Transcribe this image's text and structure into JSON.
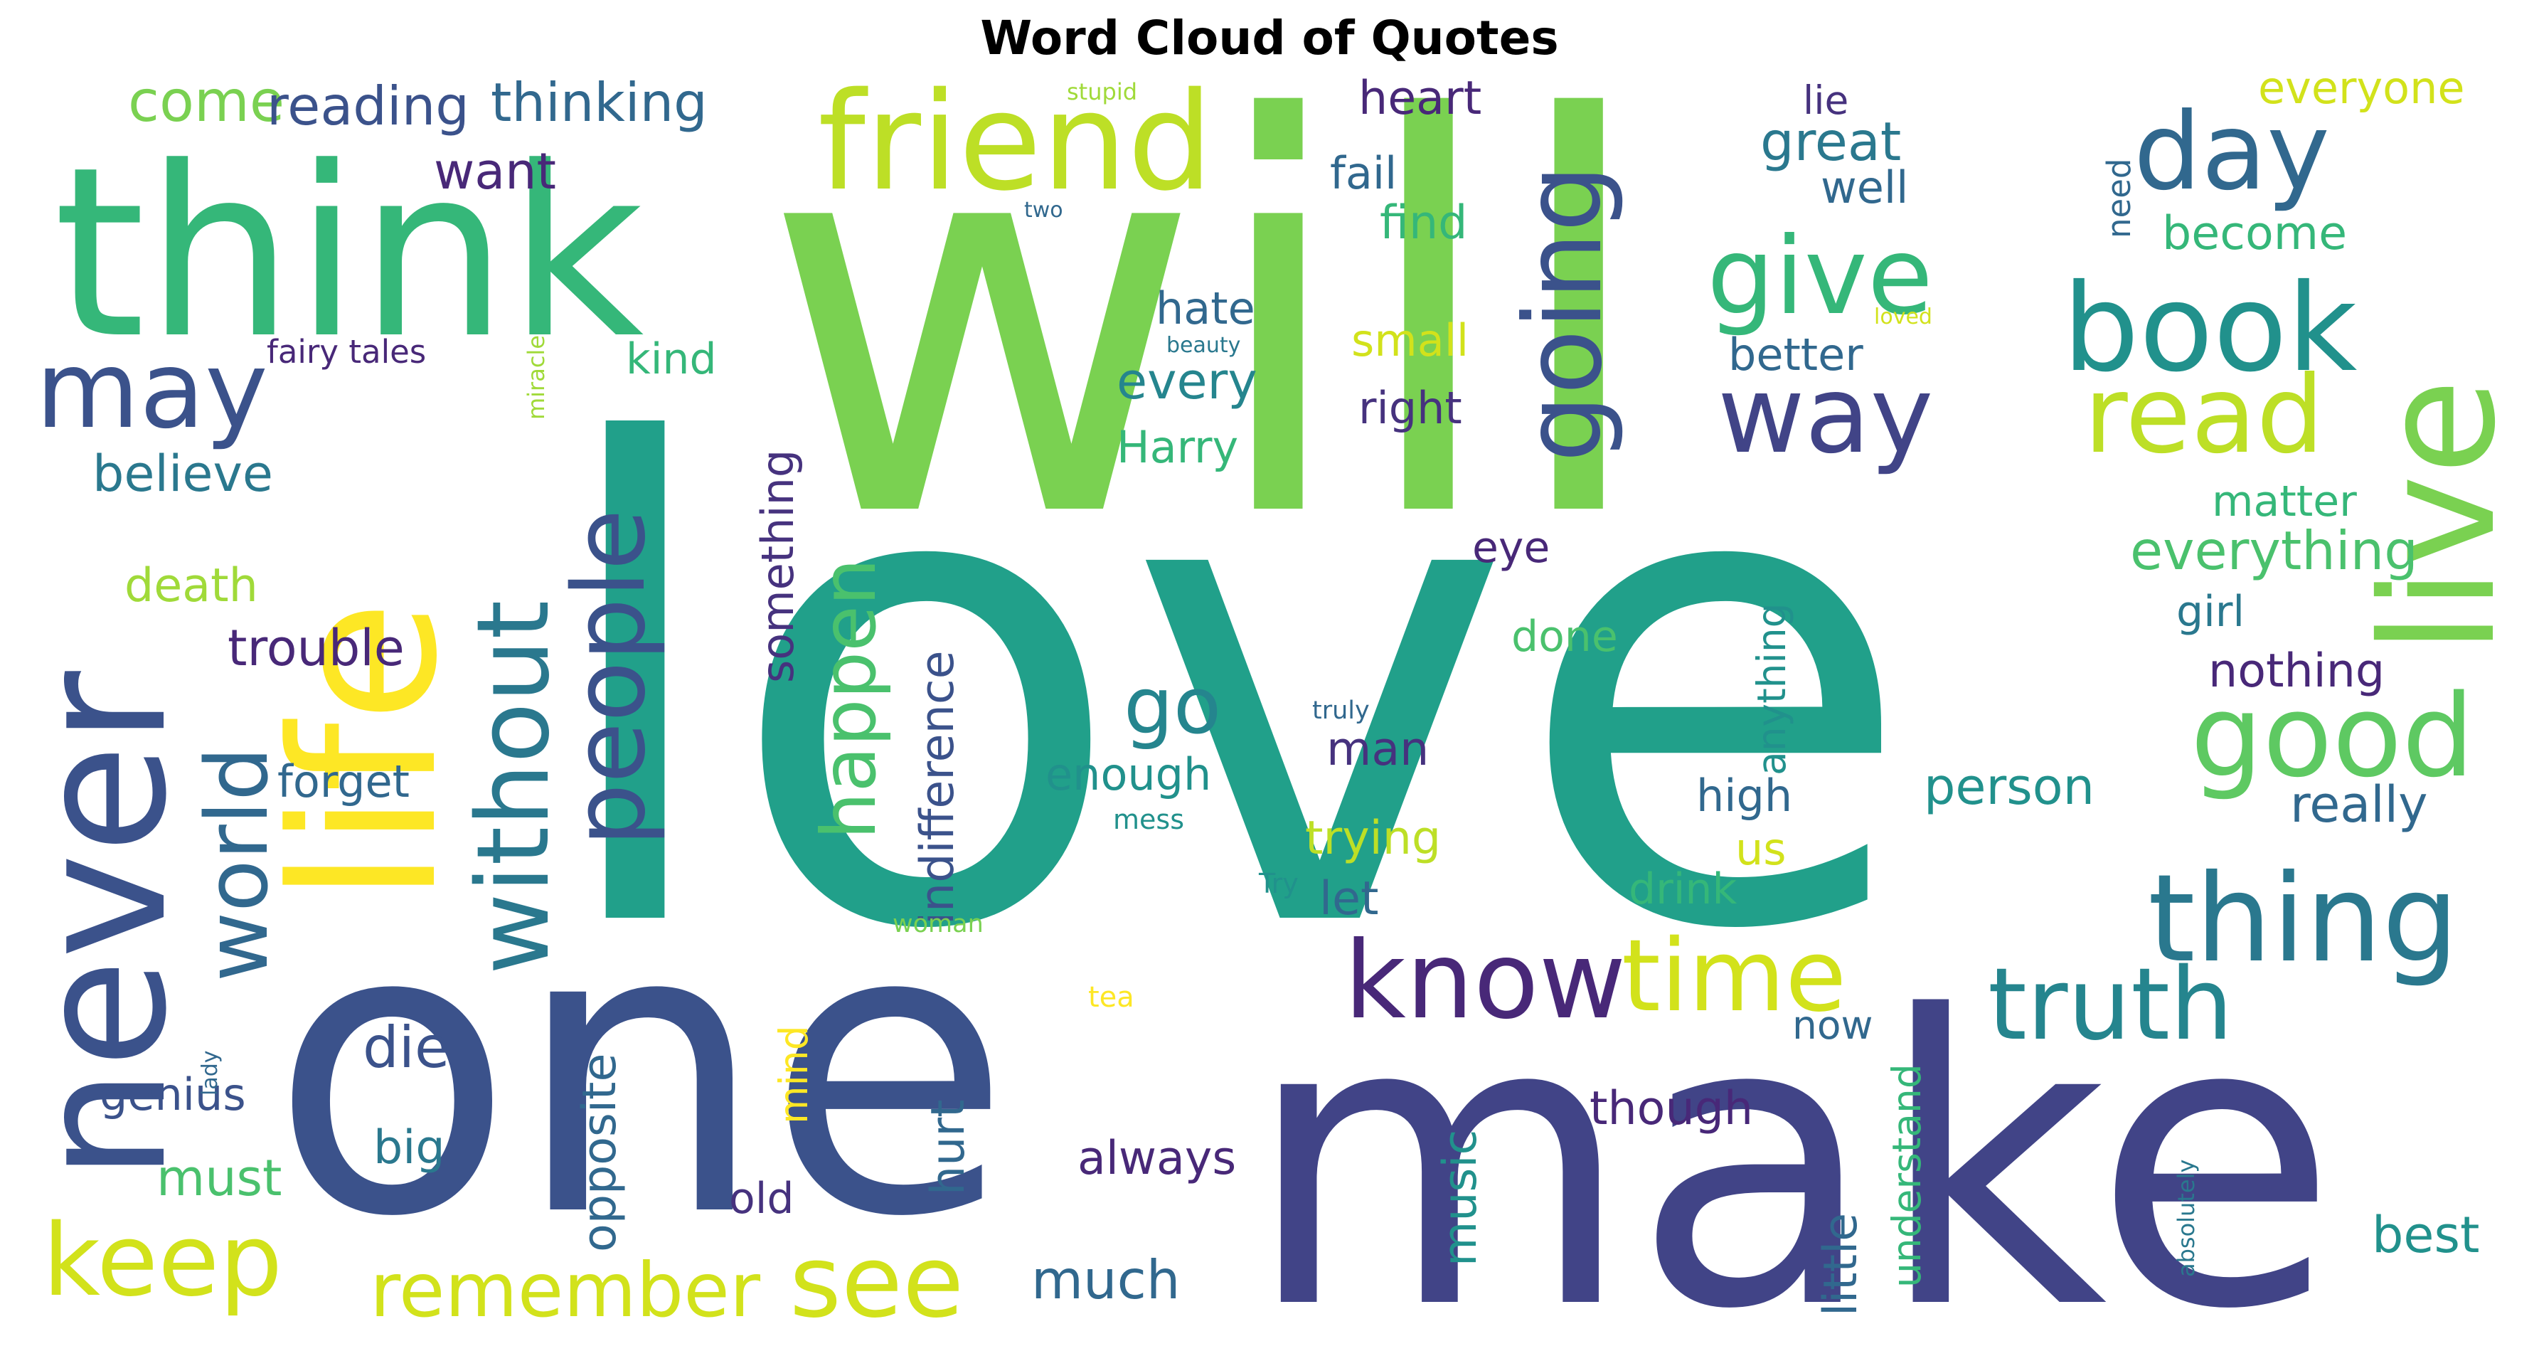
{
  "title": "Word Cloud of Quotes",
  "words": [
    {
      "text": "love",
      "color": "#21a08a"
    },
    {
      "text": "will",
      "color": "#7ad151"
    },
    {
      "text": "one",
      "color": "#3b528b"
    },
    {
      "text": "make",
      "color": "#414487"
    },
    {
      "text": "think",
      "color": "#35b779"
    },
    {
      "text": "life",
      "color": "#fde725"
    },
    {
      "text": "never",
      "color": "#3b528b"
    },
    {
      "text": "live",
      "color": "#7ad151"
    },
    {
      "text": "friend",
      "color": "#bddf26"
    },
    {
      "text": "book",
      "color": "#21918c"
    },
    {
      "text": "day",
      "color": "#31688e"
    },
    {
      "text": "give",
      "color": "#35b779"
    },
    {
      "text": "read",
      "color": "#bddf26"
    },
    {
      "text": "way",
      "color": "#414487"
    },
    {
      "text": "going",
      "color": "#3b528b"
    },
    {
      "text": "people",
      "color": "#3b528b"
    },
    {
      "text": "without",
      "color": "#2a788e"
    },
    {
      "text": "world",
      "color": "#31688e"
    },
    {
      "text": "may",
      "color": "#3b528b"
    },
    {
      "text": "good",
      "color": "#5ec962"
    },
    {
      "text": "thing",
      "color": "#2a788e"
    },
    {
      "text": "know",
      "color": "#482878"
    },
    {
      "text": "time",
      "color": "#d2e21b"
    },
    {
      "text": "truth",
      "color": "#25858e"
    },
    {
      "text": "keep",
      "color": "#d2e21b"
    },
    {
      "text": "see",
      "color": "#d2e21b"
    },
    {
      "text": "remember",
      "color": "#d2e21b"
    },
    {
      "text": "happen",
      "color": "#4ac16d"
    },
    {
      "text": "go",
      "color": "#25858e"
    },
    {
      "text": "come",
      "color": "#7ad151"
    },
    {
      "text": "reading",
      "color": "#3b528b"
    },
    {
      "text": "thinking",
      "color": "#31688e"
    },
    {
      "text": "want",
      "color": "#482878"
    },
    {
      "text": "believe",
      "color": "#2a788e"
    },
    {
      "text": "death",
      "color": "#a0da39"
    },
    {
      "text": "trouble",
      "color": "#482878"
    },
    {
      "text": "forget",
      "color": "#31688e"
    },
    {
      "text": "genius",
      "color": "#3b528b"
    },
    {
      "text": "must",
      "color": "#4ac16d"
    },
    {
      "text": "die",
      "color": "#3b528b"
    },
    {
      "text": "big",
      "color": "#2a788e"
    },
    {
      "text": "heart",
      "color": "#482878"
    },
    {
      "text": "fail",
      "color": "#31688e"
    },
    {
      "text": "find",
      "color": "#35b779"
    },
    {
      "text": "hate",
      "color": "#31688e"
    },
    {
      "text": "every",
      "color": "#25858e"
    },
    {
      "text": "Harry",
      "color": "#35b779"
    },
    {
      "text": "kind",
      "color": "#35b779"
    },
    {
      "text": "fairy tales",
      "color": "#482878"
    },
    {
      "text": "miracle",
      "color": "#a0da39"
    },
    {
      "text": "small",
      "color": "#d2e21b"
    },
    {
      "text": "right",
      "color": "#46327e"
    },
    {
      "text": "eye",
      "color": "#482878"
    },
    {
      "text": "done",
      "color": "#4ac16d"
    },
    {
      "text": "man",
      "color": "#46327e"
    },
    {
      "text": "enough",
      "color": "#21918c"
    },
    {
      "text": "trying",
      "color": "#bddf26"
    },
    {
      "text": "let",
      "color": "#31688e"
    },
    {
      "text": "something",
      "color": "#46327e"
    },
    {
      "text": "indifference",
      "color": "#3b528b"
    },
    {
      "text": "opposite",
      "color": "#31688e"
    },
    {
      "text": "mind",
      "color": "#fde725"
    },
    {
      "text": "hurt",
      "color": "#31688e"
    },
    {
      "text": "always",
      "color": "#482878"
    },
    {
      "text": "music",
      "color": "#21918c"
    },
    {
      "text": "old",
      "color": "#46327e"
    },
    {
      "text": "much",
      "color": "#31688e"
    },
    {
      "text": "stupid",
      "color": "#a0da39"
    },
    {
      "text": "two",
      "color": "#31688e"
    },
    {
      "text": "beauty",
      "color": "#2a788e"
    },
    {
      "text": "loved",
      "color": "#d2e21b"
    },
    {
      "text": "great",
      "color": "#2a788e"
    },
    {
      "text": "lie",
      "color": "#46327e"
    },
    {
      "text": "well",
      "color": "#31688e"
    },
    {
      "text": "better",
      "color": "#31688e"
    },
    {
      "text": "need",
      "color": "#31688e"
    },
    {
      "text": "everyone",
      "color": "#d2e21b"
    },
    {
      "text": "become",
      "color": "#35b779"
    },
    {
      "text": "matter",
      "color": "#35b779"
    },
    {
      "text": "everything",
      "color": "#4ac16d"
    },
    {
      "text": "girl",
      "color": "#2a788e"
    },
    {
      "text": "nothing",
      "color": "#482878"
    },
    {
      "text": "really",
      "color": "#31688e"
    },
    {
      "text": "person",
      "color": "#21918c"
    },
    {
      "text": "anything",
      "color": "#21918c"
    },
    {
      "text": "high",
      "color": "#31688e"
    },
    {
      "text": "us",
      "color": "#d2e21b"
    },
    {
      "text": "drink",
      "color": "#35b779"
    },
    {
      "text": "truly",
      "color": "#31688e"
    },
    {
      "text": "mess",
      "color": "#21918c"
    },
    {
      "text": "Try",
      "color": "#21918c"
    },
    {
      "text": "woman",
      "color": "#7ad151"
    },
    {
      "text": "tea",
      "color": "#fde725"
    },
    {
      "text": "lady",
      "color": "#31688e"
    },
    {
      "text": "now",
      "color": "#31688e"
    },
    {
      "text": "understand",
      "color": "#35b779"
    },
    {
      "text": "though",
      "color": "#482878"
    },
    {
      "text": "little",
      "color": "#31688e"
    },
    {
      "text": "best",
      "color": "#21918c"
    },
    {
      "text": "absolutely",
      "color": "#2a788e"
    }
  ]
}
